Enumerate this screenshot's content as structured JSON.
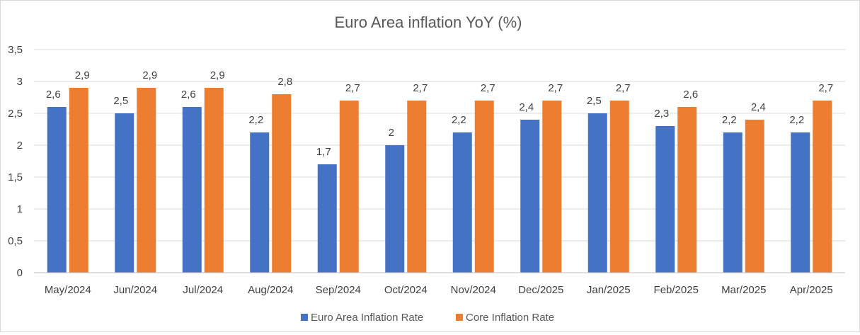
{
  "chart_data": {
    "type": "bar",
    "title": "Euro Area inflation YoY (%)",
    "xlabel": "",
    "ylabel": "",
    "ylim": [
      0,
      3.5
    ],
    "yticks": [
      "0",
      "0,5",
      "1",
      "1,5",
      "2",
      "2,5",
      "3",
      "3,5"
    ],
    "ytick_values": [
      0,
      0.5,
      1,
      1.5,
      2,
      2.5,
      3,
      3.5
    ],
    "categories": [
      "May/2024",
      "Jun/2024",
      "Jul/2024",
      "Aug/2024",
      "Sep/2024",
      "Oct/2024",
      "Nov/2024",
      "Dec/2025",
      "Jan/2025",
      "Feb/2025",
      "Mar/2025",
      "Apr/2025"
    ],
    "series": [
      {
        "name": "Euro Area Inflation Rate",
        "color": "#4472c4",
        "values": [
          2.6,
          2.5,
          2.6,
          2.2,
          1.7,
          2.0,
          2.2,
          2.4,
          2.5,
          2.3,
          2.2,
          2.2
        ],
        "labels": [
          "2,6",
          "2,5",
          "2,6",
          "2,2",
          "1,7",
          "2",
          "2,2",
          "2,4",
          "2,5",
          "2,3",
          "2,2",
          "2,2"
        ]
      },
      {
        "name": "Core Inflation Rate",
        "color": "#ed7d31",
        "values": [
          2.9,
          2.9,
          2.9,
          2.8,
          2.7,
          2.7,
          2.7,
          2.7,
          2.7,
          2.6,
          2.4,
          2.7
        ],
        "labels": [
          "2,9",
          "2,9",
          "2,9",
          "2,8",
          "2,7",
          "2,7",
          "2,7",
          "2,7",
          "2,7",
          "2,6",
          "2,4",
          "2,7"
        ]
      }
    ],
    "grid": true,
    "legend_position": "bottom"
  }
}
